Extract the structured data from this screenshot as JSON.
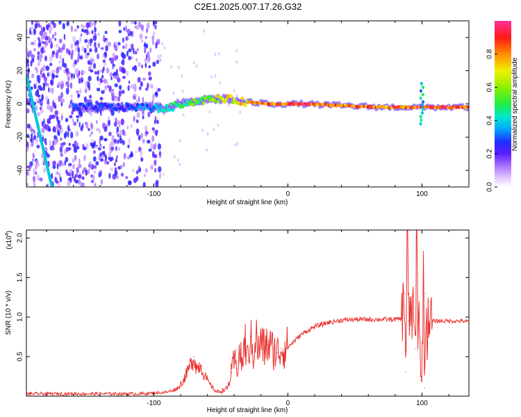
{
  "title": "C2E1.2025.007.17.26.G32",
  "chart_data": [
    {
      "type": "heatmap",
      "name": "spectrogram",
      "xlabel": "Height of straight line (km)",
      "ylabel": "Frequency (Hz)",
      "xlim": [
        -195,
        135
      ],
      "ylim": [
        -50,
        50
      ],
      "x_ticks": [
        -100,
        0,
        100
      ],
      "x_tick_labels": [
        "-100",
        "0",
        "100"
      ],
      "y_ticks": [
        40,
        20,
        0,
        -20,
        -40
      ],
      "y_tick_labels": [
        "40",
        "20",
        "0",
        "-20",
        "-40"
      ],
      "colorbar": {
        "label": "Normalized spectral amplitude",
        "range": [
          0,
          1
        ],
        "ticks": [
          0.0,
          0.2,
          0.4,
          0.6,
          0.8
        ],
        "tick_labels": [
          "0.0",
          "0.2",
          "0.4",
          "0.6",
          "0.8"
        ]
      },
      "features": {
        "diagonal_line": {
          "from": [
            -195,
            17
          ],
          "to": [
            -176,
            -50
          ]
        },
        "ridge_points": [
          {
            "x": -155,
            "y": -2,
            "amp": 0.3
          },
          {
            "x": -140,
            "y": -2,
            "amp": 0.3
          },
          {
            "x": -125,
            "y": -2,
            "amp": 0.3
          },
          {
            "x": -105,
            "y": -2,
            "amp": 0.35
          },
          {
            "x": -90,
            "y": -3,
            "amp": 0.5
          },
          {
            "x": -80,
            "y": 0,
            "amp": 0.55
          },
          {
            "x": -65,
            "y": 2,
            "amp": 0.6
          },
          {
            "x": -55,
            "y": 3,
            "amp": 0.7
          },
          {
            "x": -45,
            "y": 3,
            "amp": 0.75
          },
          {
            "x": -30,
            "y": 1,
            "amp": 0.8
          },
          {
            "x": -10,
            "y": 0,
            "amp": 0.9
          },
          {
            "x": 10,
            "y": 0,
            "amp": 0.95
          },
          {
            "x": 40,
            "y": -1,
            "amp": 0.85
          },
          {
            "x": 70,
            "y": -2,
            "amp": 0.9
          },
          {
            "x": 100,
            "y": -2,
            "amp": 0.95
          },
          {
            "x": 130,
            "y": -2,
            "amp": 0.95
          }
        ]
      }
    },
    {
      "type": "line",
      "name": "snr",
      "xlabel": "Height of straight line (km)",
      "ylabel": "SNR (10 * v/v)",
      "y_multiplier_label": "(x10",
      "y_multiplier_exp": "4",
      "y_multiplier_close": ")",
      "xlim": [
        -195,
        135
      ],
      "ylim": [
        0,
        2.1
      ],
      "x_ticks": [
        -100,
        0,
        100
      ],
      "x_tick_labels": [
        "-100",
        "0",
        "100"
      ],
      "y_ticks": [
        0.5,
        1.0,
        1.5,
        2.0
      ],
      "y_tick_labels": [
        "0.5",
        "1.0",
        "1.5",
        "2.0"
      ],
      "color": "#e8322e",
      "x": [
        -195,
        -150,
        -110,
        -90,
        -82,
        -78,
        -75,
        -73,
        -70,
        -68,
        -65,
        -62,
        -58,
        -55,
        -52,
        -48,
        -45,
        -42,
        -40,
        -38,
        -36,
        -34,
        -32,
        -30,
        -28,
        -26,
        -24,
        -22,
        -20,
        -18,
        -15,
        -12,
        -8,
        -5,
        0,
        5,
        10,
        20,
        30,
        40,
        50,
        60,
        70,
        80,
        85,
        87,
        88,
        89,
        90,
        92,
        94,
        95,
        96,
        97,
        98,
        99,
        100,
        101,
        102,
        103,
        104,
        105,
        106,
        108,
        112,
        120,
        130,
        135
      ],
      "y": [
        0.03,
        0.03,
        0.03,
        0.05,
        0.1,
        0.2,
        0.3,
        0.38,
        0.5,
        0.35,
        0.4,
        0.25,
        0.15,
        0.08,
        0.05,
        0.08,
        0.1,
        0.3,
        0.45,
        0.35,
        0.55,
        0.4,
        0.7,
        0.45,
        0.75,
        0.5,
        0.8,
        0.55,
        0.7,
        0.6,
        0.65,
        0.6,
        0.55,
        0.6,
        0.62,
        0.7,
        0.78,
        0.88,
        0.93,
        0.96,
        0.97,
        0.97,
        0.97,
        0.97,
        0.98,
        1.3,
        0.3,
        2.1,
        0.95,
        1.1,
        0.95,
        0.6,
        2.0,
        0.9,
        1.2,
        0.2,
        0.3,
        1.6,
        0.1,
        1.3,
        0.5,
        1.2,
        0.95,
        0.95,
        0.95,
        0.95,
        0.95,
        0.94
      ]
    }
  ]
}
